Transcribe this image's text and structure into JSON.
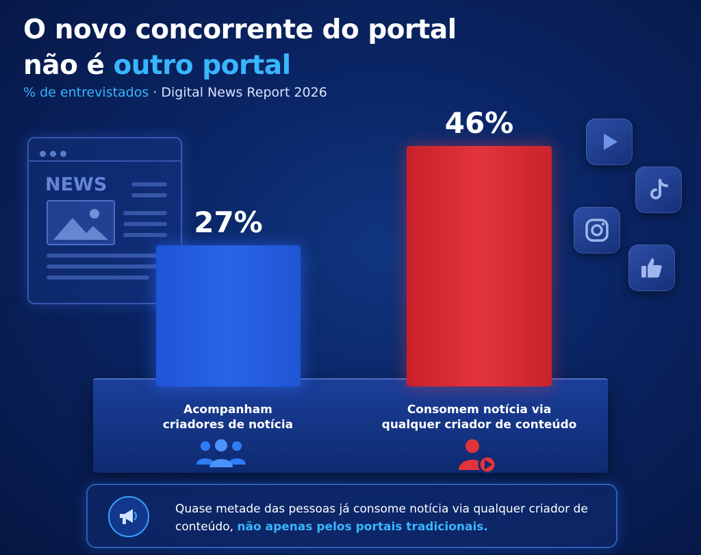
{
  "header": {
    "title_line1": "O novo concorrente do portal",
    "title_line2_pre": "não é ",
    "title_line2_accent": "outro portal",
    "subtitle_hl": "% de entrevistados",
    "subtitle_rest": " · Digital News Report 2026"
  },
  "decor": {
    "news_label": "NEWS"
  },
  "chart_data": {
    "type": "bar",
    "title": "O novo concorrente do portal não é outro portal",
    "subtitle": "% de entrevistados · Digital News Report 2026",
    "categories": [
      "Acompanham criadores de notícia",
      "Consomem notícia via qualquer criador de conteúdo"
    ],
    "values": [
      27,
      46
    ],
    "value_labels": [
      "27%",
      "46%"
    ],
    "category_lines": [
      [
        "Acompanham",
        "criadores de notícia"
      ],
      [
        "Consomem notícia via",
        "qualquer criador de conteúdo"
      ]
    ],
    "colors": [
      "#2a63e8",
      "#e2343a"
    ],
    "unit": "%",
    "ylim": [
      0,
      46
    ],
    "grid": false
  },
  "social_icons": [
    "youtube-icon",
    "tiktok-icon",
    "instagram-icon",
    "thumbs-up-icon"
  ],
  "callout": {
    "icon": "megaphone-icon",
    "text_pre": "Quase metade das pessoas já consome notícia via qualquer criador de conteúdo, ",
    "text_em": "não apenas pelos portais tradicionais."
  }
}
